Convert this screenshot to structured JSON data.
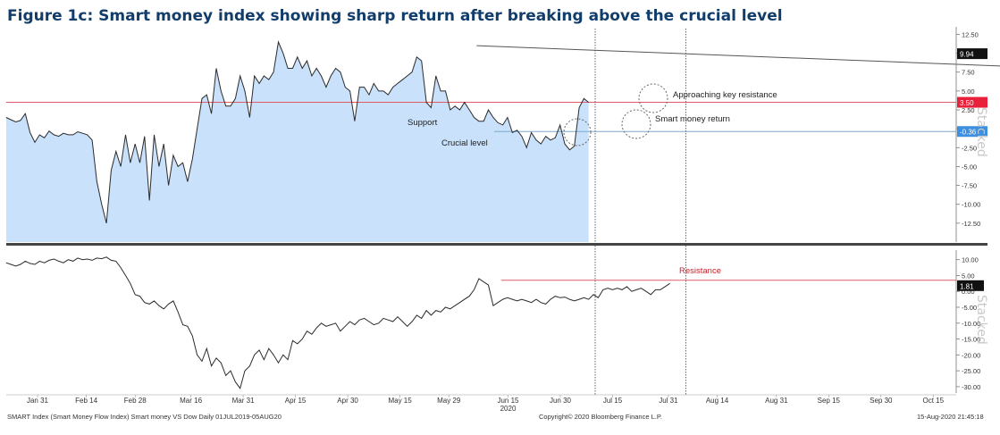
{
  "figure_title": "Figure 1c: Smart money index showing sharp return after breaking above the crucial level",
  "colors": {
    "price_line": "#2b2b2b",
    "area_fill": "#c9e1fb",
    "trendline": "#555555",
    "resistance_line": "#e05a6a",
    "crucial_line": "#7ea9cf",
    "badge_top": "#111111",
    "badge_resistance": "#e8203a",
    "badge_crucial": "#3d8fe0",
    "separator": "#444444"
  },
  "footer": {
    "left": "SMART Index (Smart Money Flow Index) Smart money VS Dow  Daily 01JUL2019-05AUG20",
    "center": "Copyright© 2020 Bloomberg Finance L.P.",
    "right": "15-Aug-2020 21:45:18"
  },
  "chart_data": [
    {
      "type": "area",
      "panel": "upper",
      "ylim": [
        -15,
        13.5
      ],
      "ticks": [
        "12.50",
        "10.00",
        "7.50",
        "5.00",
        "2.50",
        "0.00",
        "-2.50",
        "-5.00",
        "-7.50",
        "-10.00",
        "-12.50"
      ],
      "x_start_day": 0,
      "x_step_days": 1.37,
      "values": [
        1.5,
        1.2,
        0.9,
        1.1,
        2.0,
        -0.5,
        -1.8,
        -0.8,
        -1.2,
        -0.3,
        -0.8,
        -1.0,
        -0.6,
        -0.8,
        -0.8,
        -0.4,
        -0.6,
        -0.8,
        -1.5,
        -7.0,
        -10.0,
        -12.5,
        -5.5,
        -3.0,
        -5.0,
        -0.8,
        -4.5,
        -2.0,
        -4.5,
        -1.0,
        -9.5,
        -0.8,
        -5.0,
        -2.0,
        -7.5,
        -3.5,
        -5.0,
        -4.5,
        -7.0,
        -4.0,
        0.0,
        4.0,
        4.5,
        2.0,
        8.0,
        5.0,
        3.0,
        3.0,
        4.0,
        7.0,
        5.0,
        1.5,
        7.0,
        6.0,
        7.0,
        6.5,
        7.5,
        11.5,
        10.0,
        8.0,
        8.0,
        9.5,
        8.0,
        9.0,
        7.0,
        8.0,
        7.0,
        5.5,
        7.0,
        8.0,
        7.5,
        5.5,
        5.0,
        1.0,
        5.5,
        5.5,
        4.5,
        6.0,
        5.0,
        5.0,
        4.5,
        5.5,
        6.0,
        6.5,
        7.0,
        7.5,
        9.5,
        9.0,
        3.5,
        2.8,
        7.0,
        5.0,
        5.0,
        2.5,
        3.0,
        2.5,
        3.5,
        2.5,
        1.5,
        1.0,
        1.0,
        2.5,
        1.5,
        0.8,
        0.5,
        1.5,
        -0.5,
        -0.2,
        -1.0,
        -2.5,
        -0.5,
        -1.5,
        -2.0,
        -1.0,
        -1.5,
        -1.2,
        0.5,
        -2.0,
        -2.8,
        -2.3,
        2.8,
        4.0,
        3.5
      ],
      "annotations": [
        {
          "text": "Support"
        },
        {
          "text": "Crucial level"
        },
        {
          "text": "Smart money return"
        },
        {
          "text": "Approaching key resistance"
        }
      ],
      "badges": [
        {
          "label": "9.94",
          "value": 9.94
        },
        {
          "label": "3.50",
          "value": 3.5
        },
        {
          "label": "-0.36",
          "value": -0.36
        }
      ],
      "trendline": {
        "from": {
          "day": 135,
          "value": 11.0
        },
        "to": {
          "day": 415,
          "value": 6.0
        }
      },
      "crucial_level": {
        "value": -0.36,
        "from_day": 140
      },
      "resistance_level": {
        "value": 3.5
      },
      "legend_vertical": "Stacked"
    },
    {
      "type": "line",
      "panel": "lower",
      "ylim": [
        -32,
        13
      ],
      "ticks": [
        "10.00",
        "5.00",
        "0.00",
        "-5.00",
        "-10.00",
        "-15.00",
        "-20.00",
        "-25.00",
        "-30.00"
      ],
      "x_start_day": 0,
      "x_step_days": 1.37,
      "values": [
        9.0,
        8.5,
        8.0,
        8.5,
        9.5,
        8.8,
        8.5,
        9.5,
        9.0,
        9.8,
        10.2,
        9.5,
        9.0,
        10.0,
        9.5,
        10.5,
        10.0,
        10.2,
        9.8,
        10.5,
        10.3,
        10.8,
        9.8,
        9.5,
        7.5,
        5.0,
        2.5,
        -1.0,
        -1.5,
        -3.5,
        -4.0,
        -3.0,
        -4.5,
        -5.5,
        -4.0,
        -3.0,
        -6.5,
        -10.5,
        -11.0,
        -14.0,
        -20.0,
        -22.0,
        -18.0,
        -23.5,
        -21.0,
        -22.5,
        -26.5,
        -25.0,
        -28.5,
        -30.5,
        -25.0,
        -23.5,
        -20.0,
        -18.5,
        -21.5,
        -18.0,
        -20.0,
        -22.5,
        -20.0,
        -21.5,
        -15.5,
        -16.5,
        -15.0,
        -12.5,
        -13.5,
        -11.5,
        -10.0,
        -11.0,
        -10.5,
        -10.0,
        -12.5,
        -11.0,
        -9.5,
        -10.5,
        -9.0,
        -8.5,
        -9.5,
        -10.5,
        -10.0,
        -8.5,
        -9.0,
        -9.5,
        -8.0,
        -9.5,
        -11.0,
        -9.5,
        -7.5,
        -8.5,
        -6.0,
        -7.5,
        -6.0,
        -6.5,
        -5.0,
        -5.5,
        -4.5,
        -3.5,
        -2.5,
        -1.5,
        0.5,
        4.0,
        3.0,
        2.0,
        -4.5,
        -3.5,
        -2.5,
        -2.0,
        -2.5,
        -3.0,
        -2.5,
        -3.0,
        -3.5,
        -2.5,
        -3.5,
        -4.0,
        -2.5,
        -1.5,
        -2.0,
        -1.8,
        -2.5,
        -3.0,
        -2.5,
        -2.0,
        -2.5,
        -1.0,
        -2.0,
        0.5,
        1.0,
        0.5,
        1.0,
        0.5,
        1.5,
        0.0,
        0.5,
        1.0,
        0.0,
        -1.0,
        0.5,
        0.5,
        1.5,
        2.5
      ],
      "badges": [
        {
          "label": "1.81",
          "value": 1.81
        }
      ],
      "resistance_level": {
        "value": 3.5,
        "from_day": 142
      },
      "annotations": [
        {
          "text": "Resistance"
        }
      ],
      "legend_vertical": "Stacked"
    }
  ],
  "x_axis": {
    "ticks": [
      {
        "label": "Jan 31",
        "day": 9
      },
      {
        "label": "Feb 14",
        "day": 23
      },
      {
        "label": "Feb 28",
        "day": 37
      },
      {
        "label": "Mar 16",
        "day": 53
      },
      {
        "label": "Mar 31",
        "day": 68
      },
      {
        "label": "Apr 15",
        "day": 83
      },
      {
        "label": "Apr 30",
        "day": 98
      },
      {
        "label": "May 15",
        "day": 113
      },
      {
        "label": "May 29",
        "day": 127
      },
      {
        "label": "Jun 15",
        "day": 144
      },
      {
        "label": "Jun 30",
        "day": 159
      },
      {
        "label": "Jul 15",
        "day": 174
      },
      {
        "label": "Jul 31",
        "day": 190
      },
      {
        "label": "Aug 14",
        "day": 204
      },
      {
        "label": "Aug 31",
        "day": 221
      },
      {
        "label": "Sep 15",
        "day": 236
      },
      {
        "label": "Sep 30",
        "day": 251
      },
      {
        "label": "Oct 15",
        "day": 266
      }
    ],
    "year_label": {
      "text": "2020",
      "day": 144
    },
    "vlines_days": [
      169,
      195
    ]
  }
}
